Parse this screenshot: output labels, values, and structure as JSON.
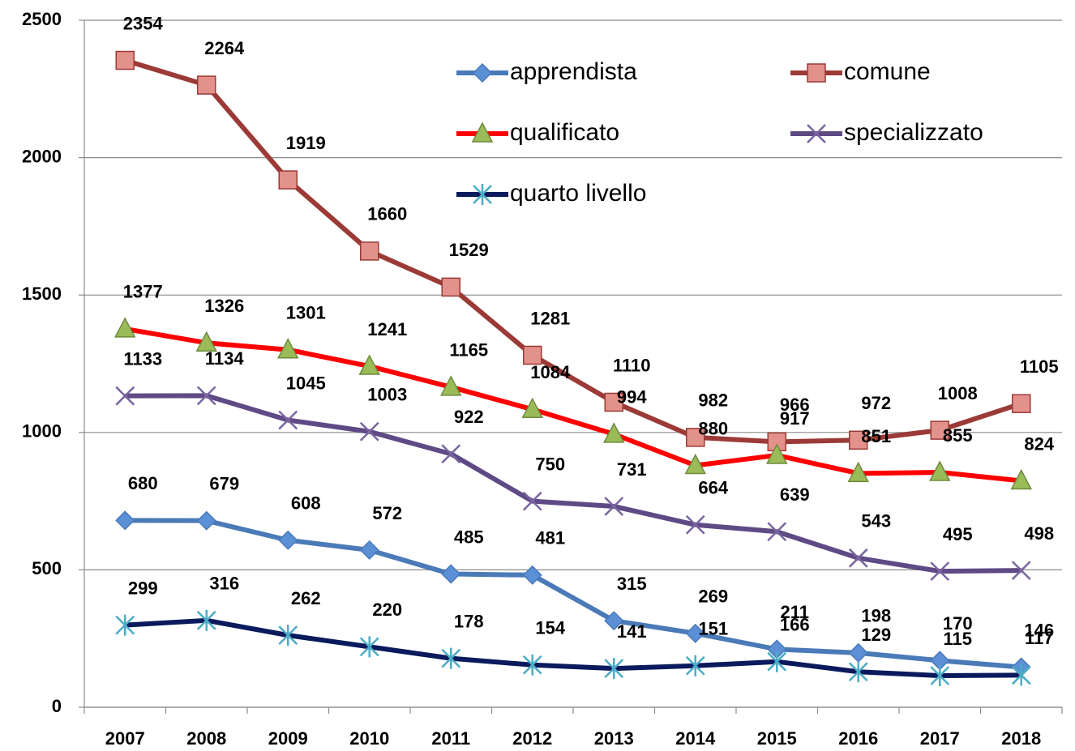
{
  "chart_data": {
    "type": "line",
    "categories": [
      "2007",
      "2008",
      "2009",
      "2010",
      "2011",
      "2012",
      "2013",
      "2014",
      "2015",
      "2016",
      "2017",
      "2018"
    ],
    "series": [
      {
        "name": "apprendista",
        "color": "#4a7ab8",
        "marker": "diamond",
        "marker_color": "#5b8fd6",
        "values": [
          680,
          679,
          608,
          572,
          485,
          481,
          315,
          269,
          211,
          198,
          170,
          146
        ]
      },
      {
        "name": "comune",
        "color": "#9b3a36",
        "marker": "square",
        "marker_color": "#e3918b",
        "values": [
          2354,
          2264,
          1919,
          1660,
          1529,
          1281,
          1110,
          982,
          966,
          972,
          1008,
          1105
        ]
      },
      {
        "name": "qualificato",
        "color": "#ff0000",
        "marker": "triangle",
        "marker_color": "#9bbb59",
        "values": [
          1377,
          1326,
          1301,
          1241,
          1165,
          1084,
          994,
          880,
          917,
          851,
          855,
          824
        ]
      },
      {
        "name": "specializzato",
        "color": "#5f4a85",
        "marker": "x",
        "marker_color": "#7a65a0",
        "values": [
          1133,
          1134,
          1045,
          1003,
          922,
          750,
          731,
          664,
          639,
          543,
          495,
          498
        ]
      },
      {
        "name": "quarto livello",
        "color": "#0a1a5c",
        "marker": "asterisk",
        "marker_color": "#4bacc6",
        "values": [
          299,
          316,
          262,
          220,
          178,
          154,
          141,
          151,
          166,
          129,
          115,
          117
        ]
      }
    ],
    "ylim": [
      0,
      2500
    ],
    "yticks": [
      0,
      500,
      1000,
      1500,
      2000,
      2500
    ],
    "grid": true,
    "legend": "top-right"
  }
}
